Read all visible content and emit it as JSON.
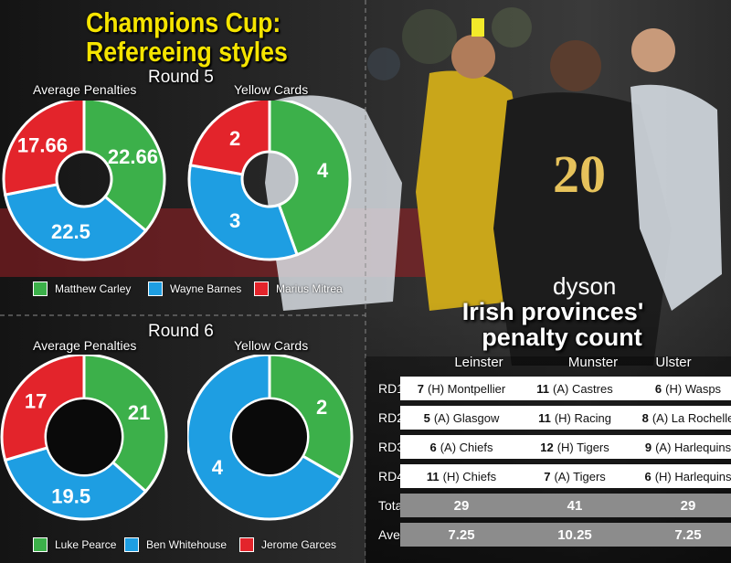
{
  "title_line1": "Champions Cup:",
  "title_line2": "Refereeing styles",
  "colors": {
    "green": "#3cb04a",
    "blue": "#1e9ee2",
    "red": "#e3242b",
    "accent": "#f5e400"
  },
  "chart_data": [
    {
      "type": "pie",
      "round": "Round 5",
      "title": "Average Penalties",
      "labels": [
        "Matthew Carley",
        "Wayne Barnes",
        "Marius Mitrea"
      ],
      "values": [
        22.66,
        22.5,
        17.66
      ],
      "value_labels": [
        "22.66",
        "22.5",
        "17.66"
      ],
      "colors": [
        "#3cb04a",
        "#1e9ee2",
        "#e3242b"
      ]
    },
    {
      "type": "pie",
      "round": "Round 5",
      "title": "Yellow Cards",
      "labels": [
        "Matthew Carley",
        "Wayne Barnes",
        "Marius Mitrea"
      ],
      "values": [
        4,
        3,
        2
      ],
      "value_labels": [
        "4",
        "3",
        "2"
      ],
      "colors": [
        "#3cb04a",
        "#1e9ee2",
        "#e3242b"
      ]
    },
    {
      "type": "pie",
      "round": "Round 6",
      "title": "Average Penalties",
      "labels": [
        "Luke Pearce",
        "Ben Whitehouse",
        "Jerome Garces"
      ],
      "values": [
        21,
        19.5,
        17
      ],
      "value_labels": [
        "21",
        "19.5",
        "17"
      ],
      "colors": [
        "#3cb04a",
        "#1e9ee2",
        "#e3242b"
      ]
    },
    {
      "type": "pie",
      "round": "Round 6",
      "title": "Yellow Cards",
      "labels": [
        "Luke Pearce",
        "Ben Whitehouse",
        "Jerome Garces"
      ],
      "values": [
        2,
        4,
        0
      ],
      "value_labels": [
        "2",
        "4",
        ""
      ],
      "colors": [
        "#3cb04a",
        "#1e9ee2",
        "#e3242b"
      ]
    },
    {
      "type": "table",
      "title_line1": "Irish provinces'",
      "title_line2": "penalty count",
      "columns": [
        "Leinster",
        "Munster",
        "Ulster"
      ],
      "rows": [
        {
          "label": "RD1",
          "cells": [
            {
              "count": "7",
              "opponent": "(H) Montpellier"
            },
            {
              "count": "11",
              "opponent": "(A) Castres"
            },
            {
              "count": "6",
              "opponent": "(H) Wasps"
            }
          ]
        },
        {
          "label": "RD2",
          "cells": [
            {
              "count": "5",
              "opponent": "(A) Glasgow"
            },
            {
              "count": "11",
              "opponent": "(H) Racing"
            },
            {
              "count": "8",
              "opponent": "(A) La Rochelle"
            }
          ]
        },
        {
          "label": "RD3",
          "cells": [
            {
              "count": "6",
              "opponent": "(A) Chiefs"
            },
            {
              "count": "12",
              "opponent": "(H) Tigers"
            },
            {
              "count": "9",
              "opponent": "(A) Harlequins"
            }
          ]
        },
        {
          "label": "RD4",
          "cells": [
            {
              "count": "11",
              "opponent": "(H) Chiefs"
            },
            {
              "count": "7",
              "opponent": "(A) Tigers"
            },
            {
              "count": "6",
              "opponent": "(H) Harlequins"
            }
          ]
        }
      ],
      "total": {
        "label": "Total",
        "values": [
          "29",
          "41",
          "29"
        ]
      },
      "average": {
        "label": "Average",
        "values": [
          "7.25",
          "10.25",
          "7.25"
        ]
      }
    }
  ]
}
